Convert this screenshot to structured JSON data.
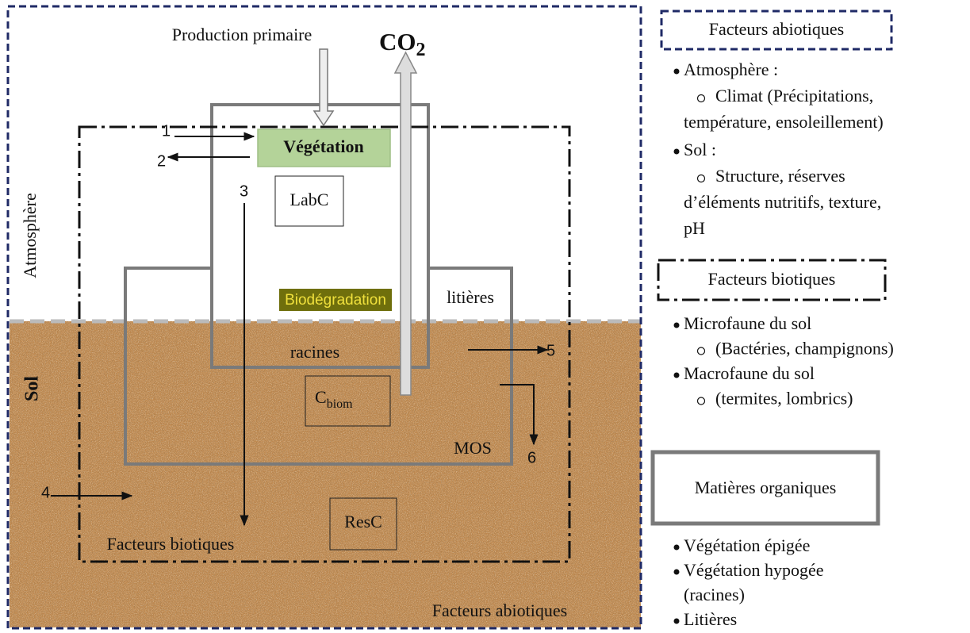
{
  "diagram": {
    "production": "Production primaire",
    "co2": "CO",
    "co2_sub": "2",
    "vegetation": "Végétation",
    "labc": "LabC",
    "atmosphere": "Atmosphère",
    "sol": "Sol",
    "biodegradation": "Biodégradation",
    "litieres": "litières",
    "racines": "racines",
    "cbiom": "C",
    "cbiom_sub": "biom",
    "mos": "MOS",
    "resc": "ResC",
    "facteurs_biotiques": "Facteurs biotiques",
    "facteurs_abiotiques": "Facteurs abiotiques",
    "numbers": [
      "1",
      "2",
      "3",
      "4",
      "5",
      "6"
    ]
  },
  "legend": [
    {
      "title": "Facteurs abiotiques",
      "items": [
        {
          "text": "Atmosphère :",
          "sub": [
            "Climat (Précipitations,",
            "température, ensoleillement)"
          ]
        },
        {
          "text": "Sol :",
          "sub": [
            "Structure, réserves",
            "d’éléments nutritifs, texture,",
            "pH"
          ]
        }
      ]
    },
    {
      "title": "Facteurs biotiques",
      "items": [
        {
          "text": "Microfaune du sol",
          "sub": [
            "(Bactéries, champignons)"
          ]
        },
        {
          "text": "Macrofaune du sol",
          "sub": [
            "(termites, lombrics)"
          ]
        }
      ]
    },
    {
      "title": "Matières organiques",
      "items": [
        {
          "text": "Végétation épigée"
        },
        {
          "text": "Végétation hypogée",
          "sub": [
            "(racines)"
          ]
        },
        {
          "text": "Litières"
        }
      ]
    }
  ]
}
